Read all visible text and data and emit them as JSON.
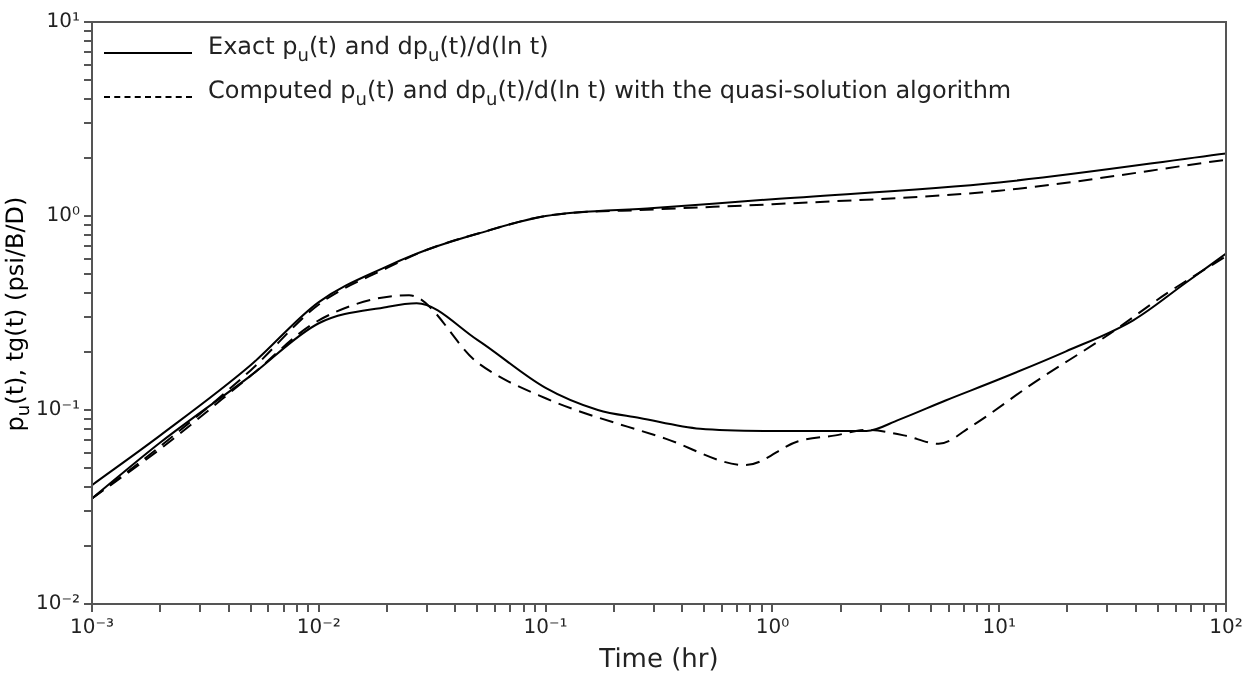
{
  "chart_data": {
    "type": "line",
    "xlabel": "Time (hr)",
    "ylabel": "p$_{u}$(t), tg(t) (psi/B/D)",
    "log": "xy",
    "grid": false,
    "legend": "top left",
    "marker": "none",
    "xlim": [
      0.001,
      100
    ],
    "ylim": [
      0.01,
      10
    ],
    "xticks": [
      {
        "value": 0.001,
        "label": "10⁻³"
      },
      {
        "value": 0.002,
        "label": null
      },
      {
        "value": 0.003,
        "label": null
      },
      {
        "value": 0.004,
        "label": null
      },
      {
        "value": 0.005,
        "label": null
      },
      {
        "value": 0.006,
        "label": null
      },
      {
        "value": 0.007,
        "label": null
      },
      {
        "value": 0.008,
        "label": null
      },
      {
        "value": 0.009,
        "label": null
      },
      {
        "value": 0.01,
        "label": "10⁻²"
      },
      {
        "value": 0.02,
        "label": null
      },
      {
        "value": 0.03,
        "label": null
      },
      {
        "value": 0.04,
        "label": null
      },
      {
        "value": 0.05,
        "label": null
      },
      {
        "value": 0.06,
        "label": null
      },
      {
        "value": 0.07,
        "label": null
      },
      {
        "value": 0.08,
        "label": null
      },
      {
        "value": 0.09,
        "label": null
      },
      {
        "value": 0.1,
        "label": "10⁻¹"
      },
      {
        "value": 0.2,
        "label": null
      },
      {
        "value": 0.3,
        "label": null
      },
      {
        "value": 0.4,
        "label": null
      },
      {
        "value": 0.5,
        "label": null
      },
      {
        "value": 0.6,
        "label": null
      },
      {
        "value": 0.7,
        "label": null
      },
      {
        "value": 0.8,
        "label": null
      },
      {
        "value": 0.9,
        "label": null
      },
      {
        "value": 1,
        "label": "10⁰"
      },
      {
        "value": 2,
        "label": null
      },
      {
        "value": 3,
        "label": null
      },
      {
        "value": 4,
        "label": null
      },
      {
        "value": 5,
        "label": null
      },
      {
        "value": 6,
        "label": null
      },
      {
        "value": 7,
        "label": null
      },
      {
        "value": 8,
        "label": null
      },
      {
        "value": 9,
        "label": null
      },
      {
        "value": 10,
        "label": "10¹"
      },
      {
        "value": 20,
        "label": null
      },
      {
        "value": 30,
        "label": null
      },
      {
        "value": 40,
        "label": null
      },
      {
        "value": 50,
        "label": null
      },
      {
        "value": 60,
        "label": null
      },
      {
        "value": 70,
        "label": null
      },
      {
        "value": 80,
        "label": null
      },
      {
        "value": 90,
        "label": null
      },
      {
        "value": 100,
        "label": "10²"
      }
    ],
    "yticks": [
      {
        "value": 0.01,
        "label": "10⁻²"
      },
      {
        "value": 0.02,
        "label": null
      },
      {
        "value": 0.03,
        "label": null
      },
      {
        "value": 0.04,
        "label": null
      },
      {
        "value": 0.05,
        "label": null
      },
      {
        "value": 0.06,
        "label": null
      },
      {
        "value": 0.07,
        "label": null
      },
      {
        "value": 0.08,
        "label": null
      },
      {
        "value": 0.09,
        "label": null
      },
      {
        "value": 0.1,
        "label": "10⁻¹"
      },
      {
        "value": 0.2,
        "label": null
      },
      {
        "value": 0.3,
        "label": null
      },
      {
        "value": 0.4,
        "label": null
      },
      {
        "value": 0.5,
        "label": null
      },
      {
        "value": 0.6,
        "label": null
      },
      {
        "value": 0.7,
        "label": null
      },
      {
        "value": 0.8,
        "label": null
      },
      {
        "value": 0.9,
        "label": null
      },
      {
        "value": 1,
        "label": "10⁰"
      },
      {
        "value": 2,
        "label": null
      },
      {
        "value": 3,
        "label": null
      },
      {
        "value": 4,
        "label": null
      },
      {
        "value": 5,
        "label": null
      },
      {
        "value": 6,
        "label": null
      },
      {
        "value": 7,
        "label": null
      },
      {
        "value": 8,
        "label": null
      },
      {
        "value": 9,
        "label": null
      },
      {
        "value": 10,
        "label": "10¹"
      }
    ],
    "series": [
      {
        "name": "Exact p$_{u}$(t) and dp$_{u}$(t)/d(ln t)",
        "color": "#000000",
        "line_style": "solid",
        "x": [
          0.001,
          0.002,
          0.005,
          0.01,
          0.02,
          0.03,
          0.05,
          0.1,
          0.3,
          1,
          10,
          100
        ],
        "values": [
          0.041,
          0.074,
          0.17,
          0.36,
          0.55,
          0.67,
          0.81,
          1.0,
          1.1,
          1.22,
          1.49,
          2.1
        ]
      },
      {
        "color": "#000000",
        "line_style": "solid",
        "x": [
          0.001,
          0.002,
          0.005,
          0.01,
          0.02,
          0.027,
          0.05,
          0.1,
          0.17,
          0.26,
          0.48,
          1,
          2.6,
          3.6,
          5.8,
          10,
          19.6,
          39,
          66,
          100
        ],
        "values": [
          0.035,
          0.068,
          0.15,
          0.28,
          0.34,
          0.355,
          0.23,
          0.13,
          0.1,
          0.091,
          0.08,
          0.078,
          0.078,
          0.089,
          0.112,
          0.144,
          0.2,
          0.29,
          0.45,
          0.64
        ]
      },
      {
        "name": "Computed p$_{u}$(t) and dp$_{u}$(t)/d(ln t) with the quasi-solution algorithm",
        "color": "#000000",
        "line_style": "dashed",
        "x": [
          0.001,
          0.002,
          0.005,
          0.01,
          0.02,
          0.03,
          0.05,
          0.1,
          0.3,
          1,
          10,
          100
        ],
        "values": [
          0.035,
          0.065,
          0.16,
          0.35,
          0.54,
          0.67,
          0.81,
          1.0,
          1.08,
          1.15,
          1.35,
          1.95
        ]
      },
      {
        "color": "#000000",
        "line_style": "dashed",
        "x": [
          0.001,
          0.002,
          0.005,
          0.01,
          0.025,
          0.05,
          0.1,
          0.34,
          0.76,
          1.3,
          1.9,
          2.6,
          3.8,
          5.4,
          7.6,
          14.2,
          29.6,
          55,
          100
        ],
        "values": [
          0.035,
          0.063,
          0.15,
          0.29,
          0.39,
          0.176,
          0.115,
          0.071,
          0.052,
          0.069,
          0.074,
          0.079,
          0.074,
          0.067,
          0.083,
          0.138,
          0.24,
          0.4,
          0.62
        ]
      }
    ]
  }
}
